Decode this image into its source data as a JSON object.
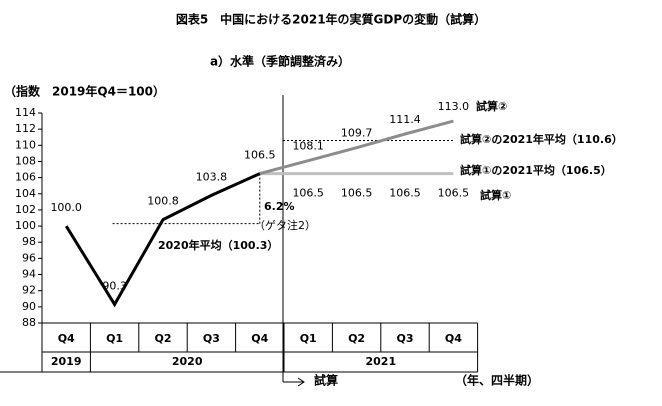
{
  "chart_data": {
    "type": "line",
    "title": "図表5　中国における2021年の実質GDPの変動（試算）",
    "subtitle": "a）水準（季節調整済み）",
    "y_label": "（指数　2019年Q4＝100）",
    "x_label": "（年、四半期）",
    "forecast_label": "試算",
    "categories": [
      "Q4",
      "Q1",
      "Q2",
      "Q3",
      "Q4",
      "Q1",
      "Q2",
      "Q3",
      "Q4"
    ],
    "x_groups": [
      {
        "label": "2019",
        "count": 1
      },
      {
        "label": "2020",
        "count": 4
      },
      {
        "label": "2021",
        "count": 4
      }
    ],
    "ylim": [
      88,
      114
    ],
    "yticks": [
      88,
      90,
      92,
      94,
      96,
      98,
      100,
      102,
      104,
      106,
      108,
      110,
      112,
      114
    ],
    "series": [
      {
        "color": "#000000",
        "values": [
          100.0,
          90.3,
          100.8,
          103.8,
          106.5,
          null,
          null,
          null,
          null
        ],
        "value_labels": [
          "100.0",
          "90.3",
          "100.8",
          "103.8",
          "106.5",
          null,
          null,
          null,
          null
        ]
      },
      {
        "name": "試算②",
        "color": "#8c8c8c",
        "values": [
          null,
          null,
          null,
          null,
          106.5,
          108.1,
          109.7,
          111.4,
          113.0
        ],
        "value_labels": [
          null,
          null,
          null,
          null,
          null,
          "108.1",
          "109.7",
          "111.4",
          "113.0"
        ]
      },
      {
        "name": "試算①",
        "color": "#bfbfbf",
        "values": [
          null,
          null,
          null,
          null,
          106.5,
          106.5,
          106.5,
          106.5,
          106.5
        ],
        "value_labels": [
          null,
          null,
          null,
          null,
          null,
          "106.5",
          "106.5",
          "106.5",
          "106.5"
        ]
      }
    ],
    "annotations": [
      {
        "text": "2020年平均（100.3）",
        "value": 100.3
      },
      {
        "text": "試算②の2021年平均（110.6）",
        "value": 110.6
      },
      {
        "text": "試算①の2021平均（106.5）"
      },
      {
        "text": "6.2%"
      },
      {
        "text": "（ゲタ注2）"
      }
    ]
  }
}
